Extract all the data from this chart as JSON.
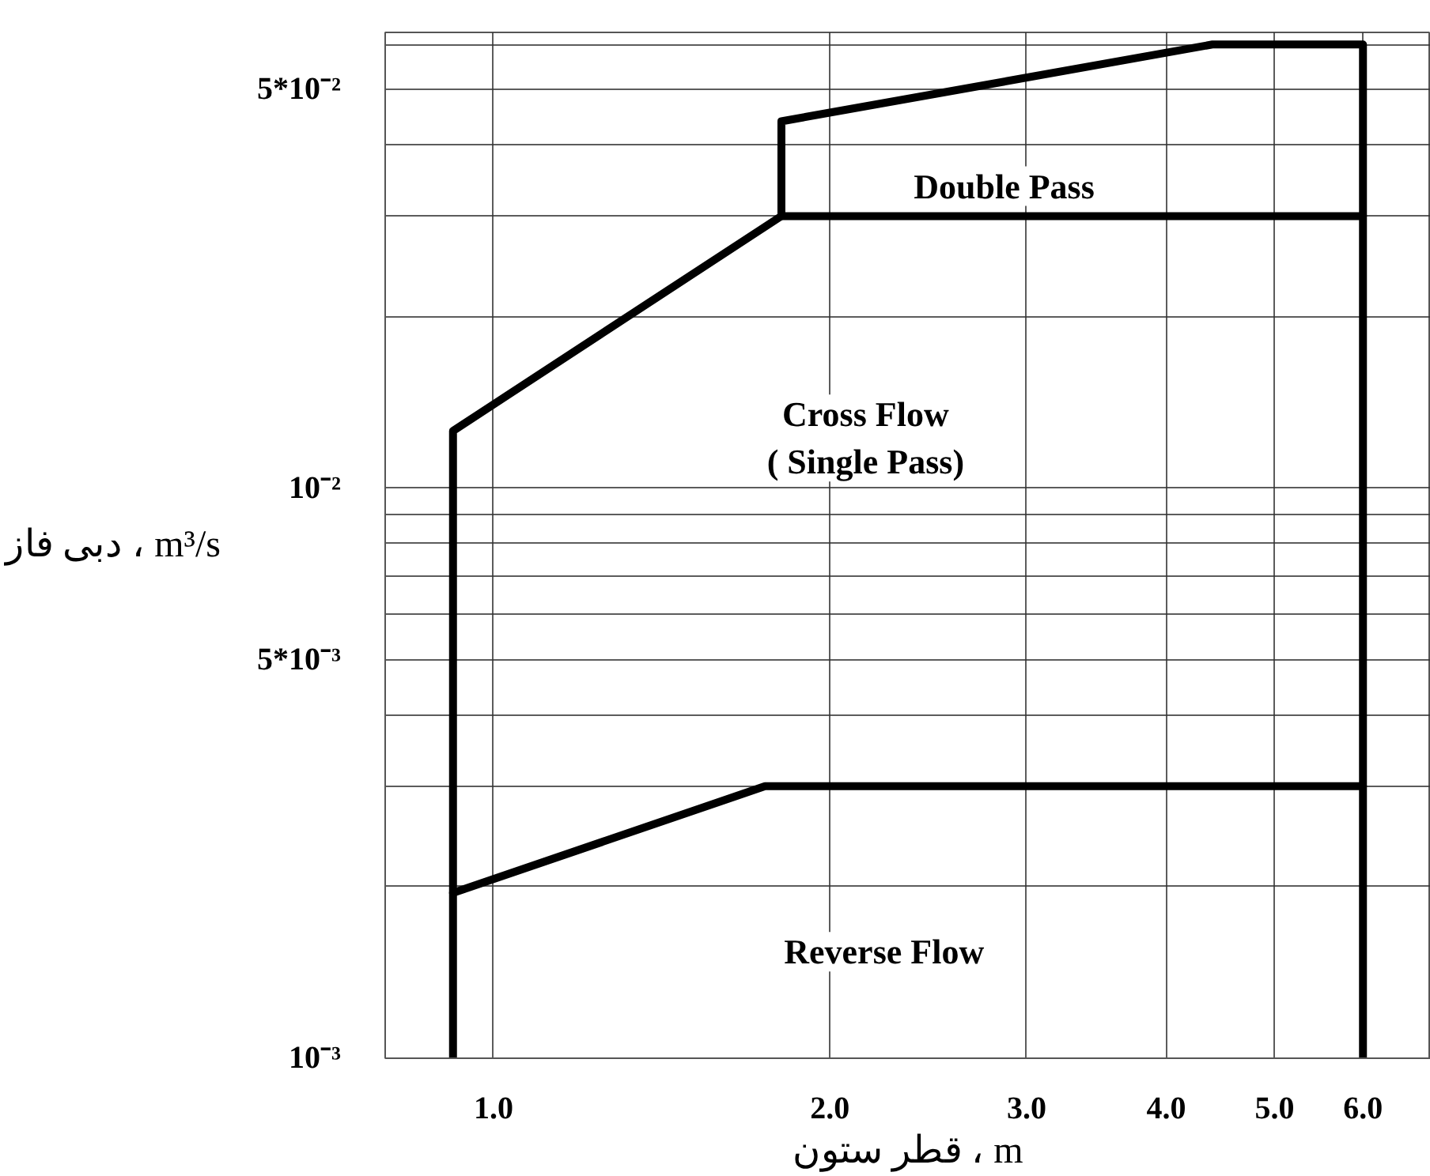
{
  "chart_data": {
    "type": "line",
    "xlabel": "قطر ستون ، m",
    "ylabel": "دبی فاز ، m³/s",
    "log": "xy",
    "grid": true,
    "marker": "none",
    "line_style": "solid",
    "xlim": [
      0.8,
      6.9
    ],
    "ylim": [
      0.001,
      0.063
    ],
    "xticks": [
      {
        "value": 1,
        "label": "1.0"
      },
      {
        "value": 2,
        "label": "2.0"
      },
      {
        "value": 3,
        "label": "3.0"
      },
      {
        "value": 4,
        "label": "4.0"
      },
      {
        "value": 5,
        "label": "5.0"
      },
      {
        "value": 6,
        "label": "6.0"
      }
    ],
    "yticks": [
      {
        "value": 0.001,
        "label": "10⁻³"
      },
      {
        "value": 0.002,
        "label": null
      },
      {
        "value": 0.003,
        "label": null
      },
      {
        "value": 0.004,
        "label": null
      },
      {
        "value": 0.005,
        "label": "5*10⁻³"
      },
      {
        "value": 0.006,
        "label": null
      },
      {
        "value": 0.007,
        "label": null
      },
      {
        "value": 0.008,
        "label": null
      },
      {
        "value": 0.009,
        "label": null
      },
      {
        "value": 0.01,
        "label": "10⁻²"
      },
      {
        "value": 0.02,
        "label": null
      },
      {
        "value": 0.03,
        "label": null
      },
      {
        "value": 0.04,
        "label": null
      },
      {
        "value": 0.05,
        "label": "5*10⁻²"
      },
      {
        "value": 0.06,
        "label": null
      }
    ],
    "series": [
      {
        "color": "#000000",
        "x": [
          0.92,
          0.92,
          1.81,
          1.81,
          4.4,
          6.0,
          6.0
        ],
        "values": [
          0.001,
          0.0126,
          0.03,
          0.044,
          0.06,
          0.06,
          0.001
        ]
      },
      {
        "color": "#000000",
        "x": [
          1.81,
          6.0
        ],
        "values": [
          0.03,
          0.03
        ]
      },
      {
        "color": "#000000",
        "x": [
          0.92,
          1.75,
          6.0
        ],
        "values": [
          0.00195,
          0.003,
          0.003
        ]
      }
    ],
    "annotations": [
      "Double Pass",
      "Cross Flow\n( Single Pass)",
      "Reverse Flow"
    ]
  }
}
